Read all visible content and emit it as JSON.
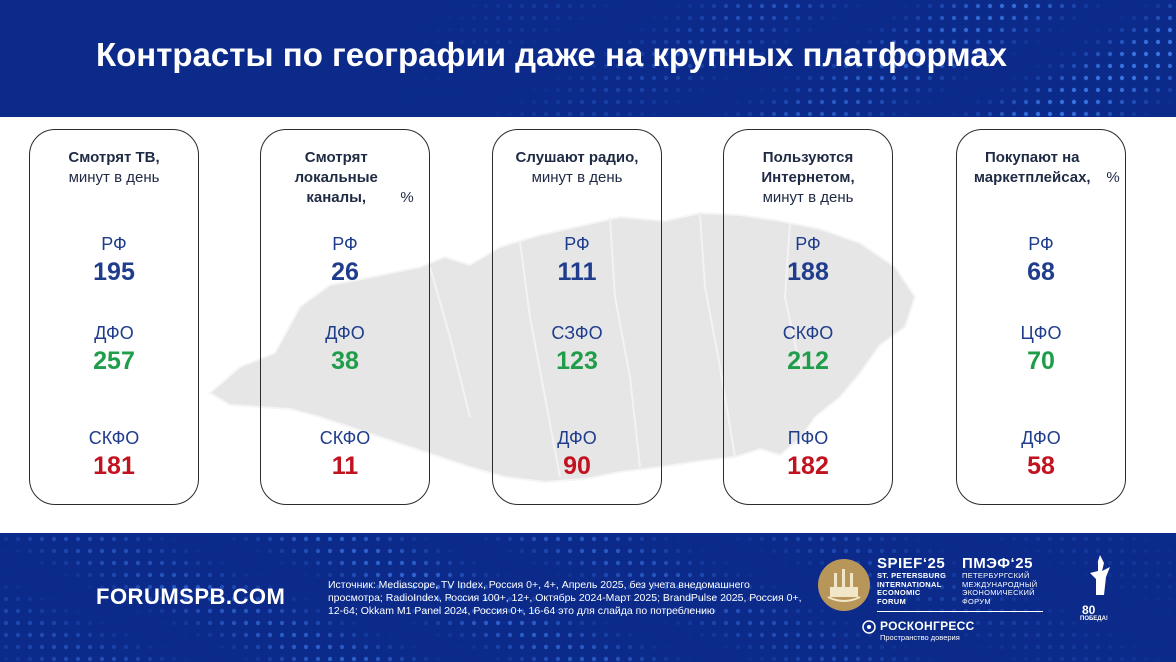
{
  "header": {
    "title": "Контрасты по географии даже на крупных платформах"
  },
  "cards": [
    {
      "head_bold": "Смотрят ТВ,",
      "head_rest": "минут в день",
      "metrics": [
        {
          "region": "РФ",
          "value": "195",
          "tone": "base"
        },
        {
          "region": "ДФО",
          "value": "257",
          "tone": "high"
        },
        {
          "region": "СКФО",
          "value": "181",
          "tone": "low"
        }
      ]
    },
    {
      "head_bold": "Смотрят локальные каналы,",
      "head_rest": "%",
      "metrics": [
        {
          "region": "РФ",
          "value": "26",
          "tone": "base"
        },
        {
          "region": "ДФО",
          "value": "38",
          "tone": "high"
        },
        {
          "region": "СКФО",
          "value": "11",
          "tone": "low"
        }
      ]
    },
    {
      "head_bold": "Слушают радио,",
      "head_rest": "минут в день",
      "metrics": [
        {
          "region": "РФ",
          "value": "111",
          "tone": "base"
        },
        {
          "region": "СЗФО",
          "value": "123",
          "tone": "high"
        },
        {
          "region": "ДФО",
          "value": "90",
          "tone": "low"
        }
      ]
    },
    {
      "head_bold": "Пользуются Интернетом,",
      "head_rest": "минут в день",
      "metrics": [
        {
          "region": "РФ",
          "value": "188",
          "tone": "base"
        },
        {
          "region": "СКФО",
          "value": "212",
          "tone": "high"
        },
        {
          "region": "ПФО",
          "value": "182",
          "tone": "low"
        }
      ]
    },
    {
      "head_bold": "Покупают на маркетплейсах,",
      "head_rest": "%",
      "metrics": [
        {
          "region": "РФ",
          "value": "68",
          "tone": "base"
        },
        {
          "region": "ЦФО",
          "value": "70",
          "tone": "high"
        },
        {
          "region": "ДФО",
          "value": "58",
          "tone": "low"
        }
      ]
    }
  ],
  "footer": {
    "site": "FORUMSPB.COM",
    "source": "Источник:  Mediascope, TV Index, Россия 0+,  4+, Апрель 2025, без учета внедомашнего просмотра; RadioIndex, Россия 100+, 12+, Октябрь 2024-Март 2025; BrandPulse 2025, Россия 0+, 12-64; Okkam M1 Panel 2024, Россия 0+, 16-64 это для слайда по потреблению",
    "spief_big": "SPIEF‘25",
    "spief_small": [
      "ST. PETERSBURG",
      "INTERNATIONAL",
      "ECONOMIC",
      "FORUM"
    ],
    "pmef_big": "ПМЭФ‘25",
    "pmef_small": [
      "ПЕТЕРБУРГСКИЙ",
      "МЕЖДУНАРОДНЫЙ",
      "ЭКОНОМИЧЕСКИЙ",
      "ФОРУМ"
    ],
    "roscongress_name": "РОСКОНГРЕСС",
    "roscongress_tag": "Пространство доверия",
    "victory_num": "80",
    "victory_word": "ПОБЕДА!"
  },
  "colors": {
    "navy": "#0b2a8a",
    "value_base": "#1f3d8c",
    "value_high": "#1f9d4a",
    "value_low": "#c1121f",
    "emblem_gold": "#b8965a"
  }
}
